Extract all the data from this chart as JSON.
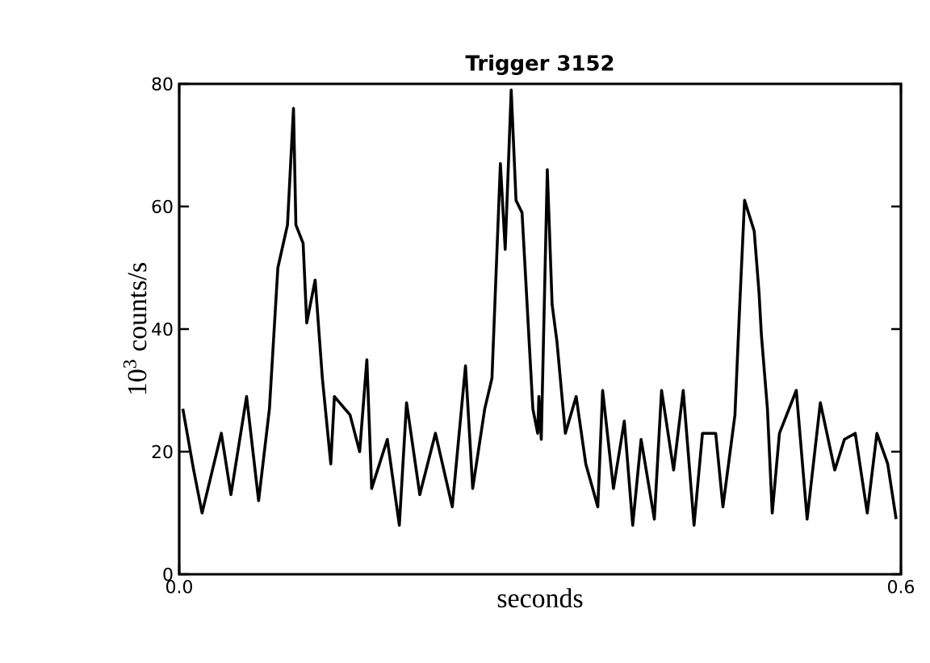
{
  "chart_data": {
    "type": "line",
    "title": "Trigger 3152",
    "xlabel": "seconds",
    "ylabel": "10$^{3}$ counts/s",
    "xlim": [
      0,
      0.6
    ],
    "xticks": [
      {
        "value": 0,
        "label": "0.0"
      },
      {
        "value": 0.6,
        "label": "0.6"
      }
    ],
    "ylim": [
      0,
      80
    ],
    "yticks": [
      0,
      20,
      40,
      60,
      80
    ],
    "grid": false,
    "marker": "none",
    "line_style": "solid",
    "series": [
      {
        "color": "#000000",
        "x": [
          0.003,
          0.012,
          0.019,
          0.035,
          0.043,
          0.056,
          0.066,
          0.075,
          0.082,
          0.09,
          0.095,
          0.097,
          0.103,
          0.106,
          0.113,
          0.119,
          0.126,
          0.129,
          0.142,
          0.15,
          0.156,
          0.16,
          0.173,
          0.183,
          0.189,
          0.2,
          0.213,
          0.227,
          0.238,
          0.244,
          0.254,
          0.26,
          0.267,
          0.271,
          0.276,
          0.28,
          0.285,
          0.294,
          0.298,
          0.299,
          0.301,
          0.306,
          0.31,
          0.314,
          0.321,
          0.33,
          0.338,
          0.348,
          0.352,
          0.361,
          0.37,
          0.377,
          0.384,
          0.395,
          0.401,
          0.411,
          0.419,
          0.428,
          0.435,
          0.446,
          0.452,
          0.462,
          0.466,
          0.47,
          0.478,
          0.482,
          0.484,
          0.489,
          0.493,
          0.499,
          0.513,
          0.522,
          0.533,
          0.545,
          0.553,
          0.562,
          0.572,
          0.58,
          0.589,
          0.596
        ],
        "values": [
          27,
          17,
          10,
          23,
          13,
          29,
          12,
          27,
          50,
          57,
          76,
          57,
          54,
          41,
          48,
          32,
          18,
          29,
          26,
          20,
          35,
          14,
          22,
          8,
          28,
          13,
          23,
          11,
          34,
          14,
          27,
          32,
          67,
          53,
          79,
          61,
          59,
          27,
          23,
          29,
          22,
          66,
          44,
          38,
          23,
          29,
          18,
          11,
          30,
          14,
          25,
          8,
          22,
          9,
          30,
          17,
          30,
          8,
          23,
          23,
          11,
          26,
          44,
          61,
          56,
          46,
          39,
          27,
          10,
          23,
          30,
          9,
          28,
          17,
          22,
          23,
          10,
          23,
          18,
          9
        ]
      }
    ]
  }
}
